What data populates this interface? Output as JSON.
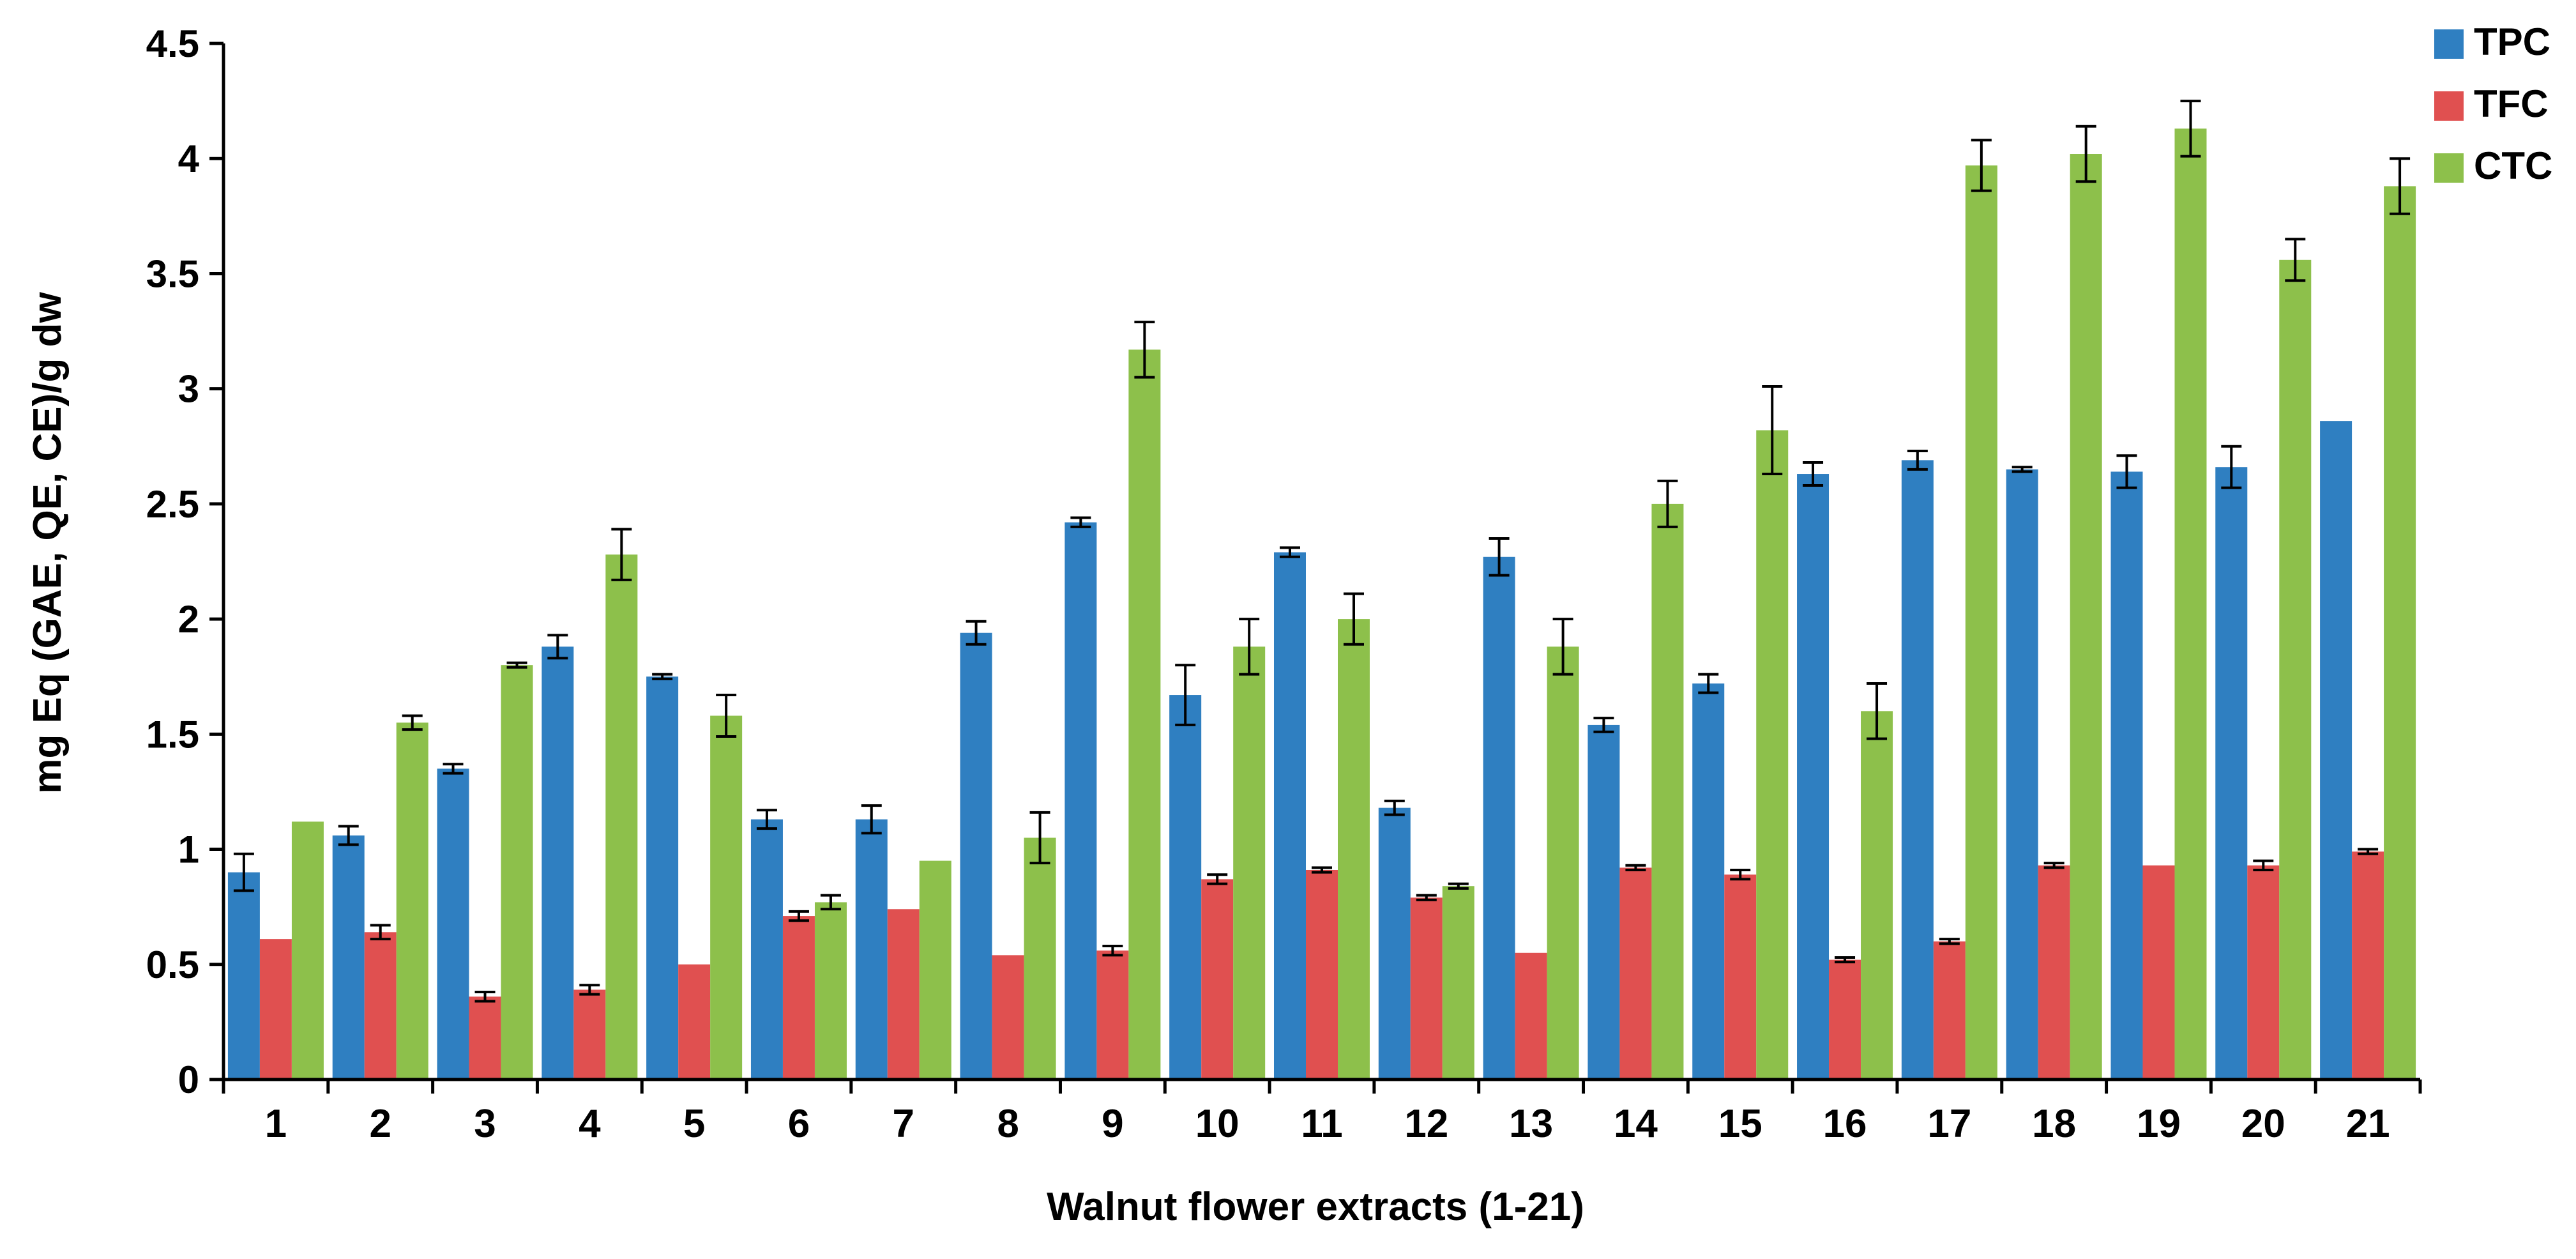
{
  "chart_data": {
    "type": "bar",
    "title": "",
    "xlabel": "Walnut flower extracts (1-21)",
    "ylabel": "mg Eq (GAE, QE, CE)/g dw",
    "ylim": [
      0,
      4.5
    ],
    "y_ticks": [
      "0",
      "0.5",
      "1",
      "1.5",
      "2",
      "2.5",
      "3",
      "3.5",
      "4",
      "4.5"
    ],
    "grid": false,
    "legend_position": "top-right",
    "categories": [
      "1",
      "2",
      "3",
      "4",
      "5",
      "6",
      "7",
      "8",
      "9",
      "10",
      "11",
      "12",
      "13",
      "14",
      "15",
      "16",
      "17",
      "18",
      "19",
      "20",
      "21"
    ],
    "series": [
      {
        "name": "TPC",
        "color": "#2f7fc1",
        "values": [
          0.9,
          1.06,
          1.35,
          1.88,
          1.75,
          1.13,
          1.13,
          1.94,
          2.42,
          1.67,
          2.29,
          1.18,
          2.27,
          1.54,
          1.72,
          2.63,
          2.69,
          2.65,
          2.64,
          2.66,
          2.86
        ],
        "errors": [
          0.08,
          0.04,
          0.02,
          0.05,
          0.01,
          0.04,
          0.06,
          0.05,
          0.02,
          0.13,
          0.02,
          0.03,
          0.08,
          0.03,
          0.04,
          0.05,
          0.04,
          0.01,
          0.07,
          0.09,
          0.0
        ]
      },
      {
        "name": "TFC",
        "color": "#e05050",
        "values": [
          0.61,
          0.64,
          0.36,
          0.39,
          0.5,
          0.71,
          0.74,
          0.54,
          0.56,
          0.87,
          0.91,
          0.79,
          0.55,
          0.92,
          0.89,
          0.52,
          0.6,
          0.93,
          0.93,
          0.93,
          0.99
        ],
        "errors": [
          0.0,
          0.03,
          0.02,
          0.02,
          0.0,
          0.02,
          0.0,
          0.0,
          0.02,
          0.02,
          0.01,
          0.01,
          0.0,
          0.01,
          0.02,
          0.01,
          0.01,
          0.01,
          0.0,
          0.02,
          0.01
        ]
      },
      {
        "name": "CTC",
        "color": "#8dc04b",
        "values": [
          1.12,
          1.55,
          1.8,
          2.28,
          1.58,
          0.77,
          0.95,
          1.05,
          3.17,
          1.88,
          2.0,
          0.84,
          1.88,
          2.5,
          2.82,
          1.6,
          3.97,
          4.02,
          4.13,
          3.56,
          3.88
        ],
        "errors": [
          0.0,
          0.03,
          0.01,
          0.11,
          0.09,
          0.03,
          0.0,
          0.11,
          0.12,
          0.12,
          0.11,
          0.01,
          0.12,
          0.1,
          0.19,
          0.12,
          0.11,
          0.12,
          0.12,
          0.09,
          0.12
        ]
      }
    ]
  }
}
